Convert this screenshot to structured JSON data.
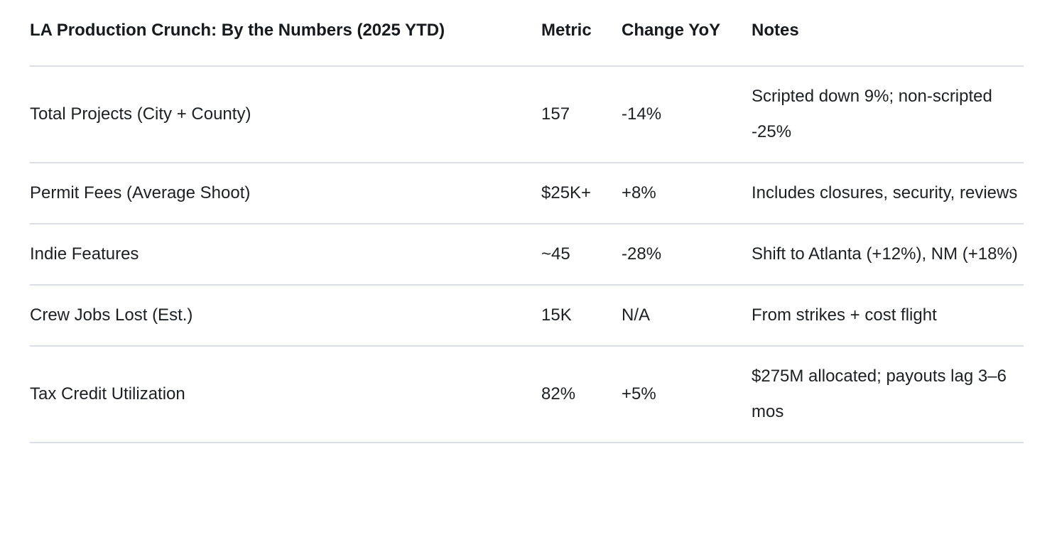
{
  "table": {
    "columns": {
      "title": "LA Production Crunch: By the Numbers (2025 YTD)",
      "metric": "Metric",
      "change": "Change YoY",
      "notes": "Notes"
    },
    "rows": [
      {
        "label": "Total Projects (City + County)",
        "metric": "157",
        "change": "-14%",
        "notes": "Scripted down 9%; non-scripted -25%"
      },
      {
        "label": "Permit Fees (Average Shoot)",
        "metric": "$25K+",
        "change": "+8%",
        "notes": "Includes closures, security, reviews"
      },
      {
        "label": "Indie Features",
        "metric": "~45",
        "change": "-28%",
        "notes": "Shift to Atlanta (+12%), NM (+18%)"
      },
      {
        "label": "Crew Jobs Lost (Est.)",
        "metric": "15K",
        "change": "N/A",
        "notes": "From strikes + cost flight"
      },
      {
        "label": "Tax Credit Utilization",
        "metric": "82%",
        "change": "+5%",
        "notes": "$275M allocated; payouts lag 3–6 mos"
      }
    ]
  },
  "colors": {
    "text": "#1c2025",
    "divider": "#d9dfe4",
    "background": "#ffffff"
  }
}
